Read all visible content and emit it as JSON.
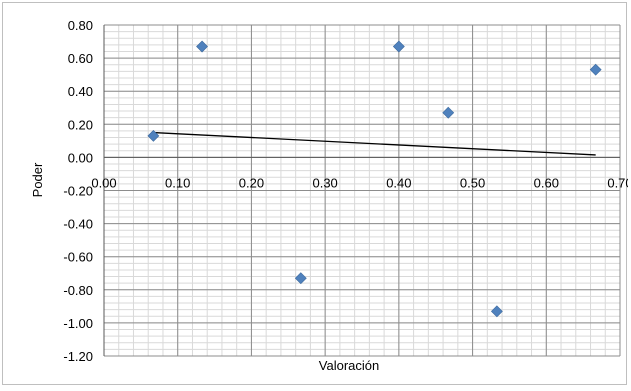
{
  "chart_data": {
    "type": "scatter",
    "xlabel": "Valoración",
    "ylabel": "Poder",
    "xlim": [
      0.0,
      0.7
    ],
    "ylim": [
      -1.2,
      0.8
    ],
    "x_ticks": [
      "0.00",
      "0.10",
      "0.20",
      "0.30",
      "0.40",
      "0.50",
      "0.60",
      "0.70"
    ],
    "y_ticks": [
      "0.80",
      "0.60",
      "0.40",
      "0.20",
      "0.00",
      "-0.20",
      "-0.40",
      "-0.60",
      "-0.80",
      "-1.00",
      "-1.20"
    ],
    "grid": true,
    "series": [
      {
        "points": [
          {
            "x": 0.067,
            "y": 0.13
          },
          {
            "x": 0.133,
            "y": 0.67
          },
          {
            "x": 0.267,
            "y": -0.73
          },
          {
            "x": 0.4,
            "y": 0.67
          },
          {
            "x": 0.467,
            "y": 0.27
          },
          {
            "x": 0.533,
            "y": -0.93
          },
          {
            "x": 0.667,
            "y": 0.53
          }
        ],
        "marker": "diamond",
        "color": "#4f81bd"
      }
    ],
    "trendline": {
      "type": "linear",
      "color": "#000000",
      "from": {
        "x": 0.067,
        "y": 0.15
      },
      "to": {
        "x": 0.667,
        "y": 0.015
      }
    }
  }
}
